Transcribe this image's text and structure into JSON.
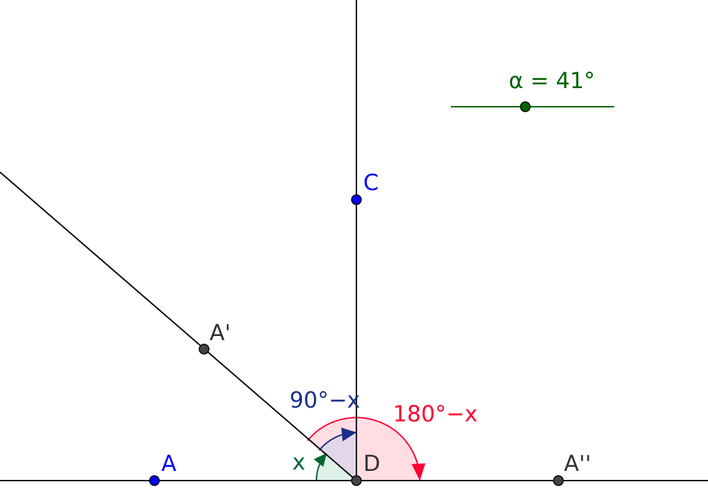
{
  "colors": {
    "line": "#000000",
    "point_gray": "#444444",
    "point_blue": "#0000ff",
    "point_green": "#006400",
    "label_gray": "#333333",
    "label_blue": "#0000ff",
    "slider_green": "#006400",
    "angle_x": "#006633",
    "angle_90": "#1a2f8a",
    "angle_180": "#ff0033"
  },
  "slider": {
    "label": "α = 41°",
    "value_deg": 41
  },
  "points": {
    "A": "A",
    "A_prime": "A'",
    "A_double_prime": "A''",
    "C": "C",
    "D": "D"
  },
  "angles": {
    "x": "x",
    "complement": "90°−x",
    "supplement": "180°−x"
  }
}
